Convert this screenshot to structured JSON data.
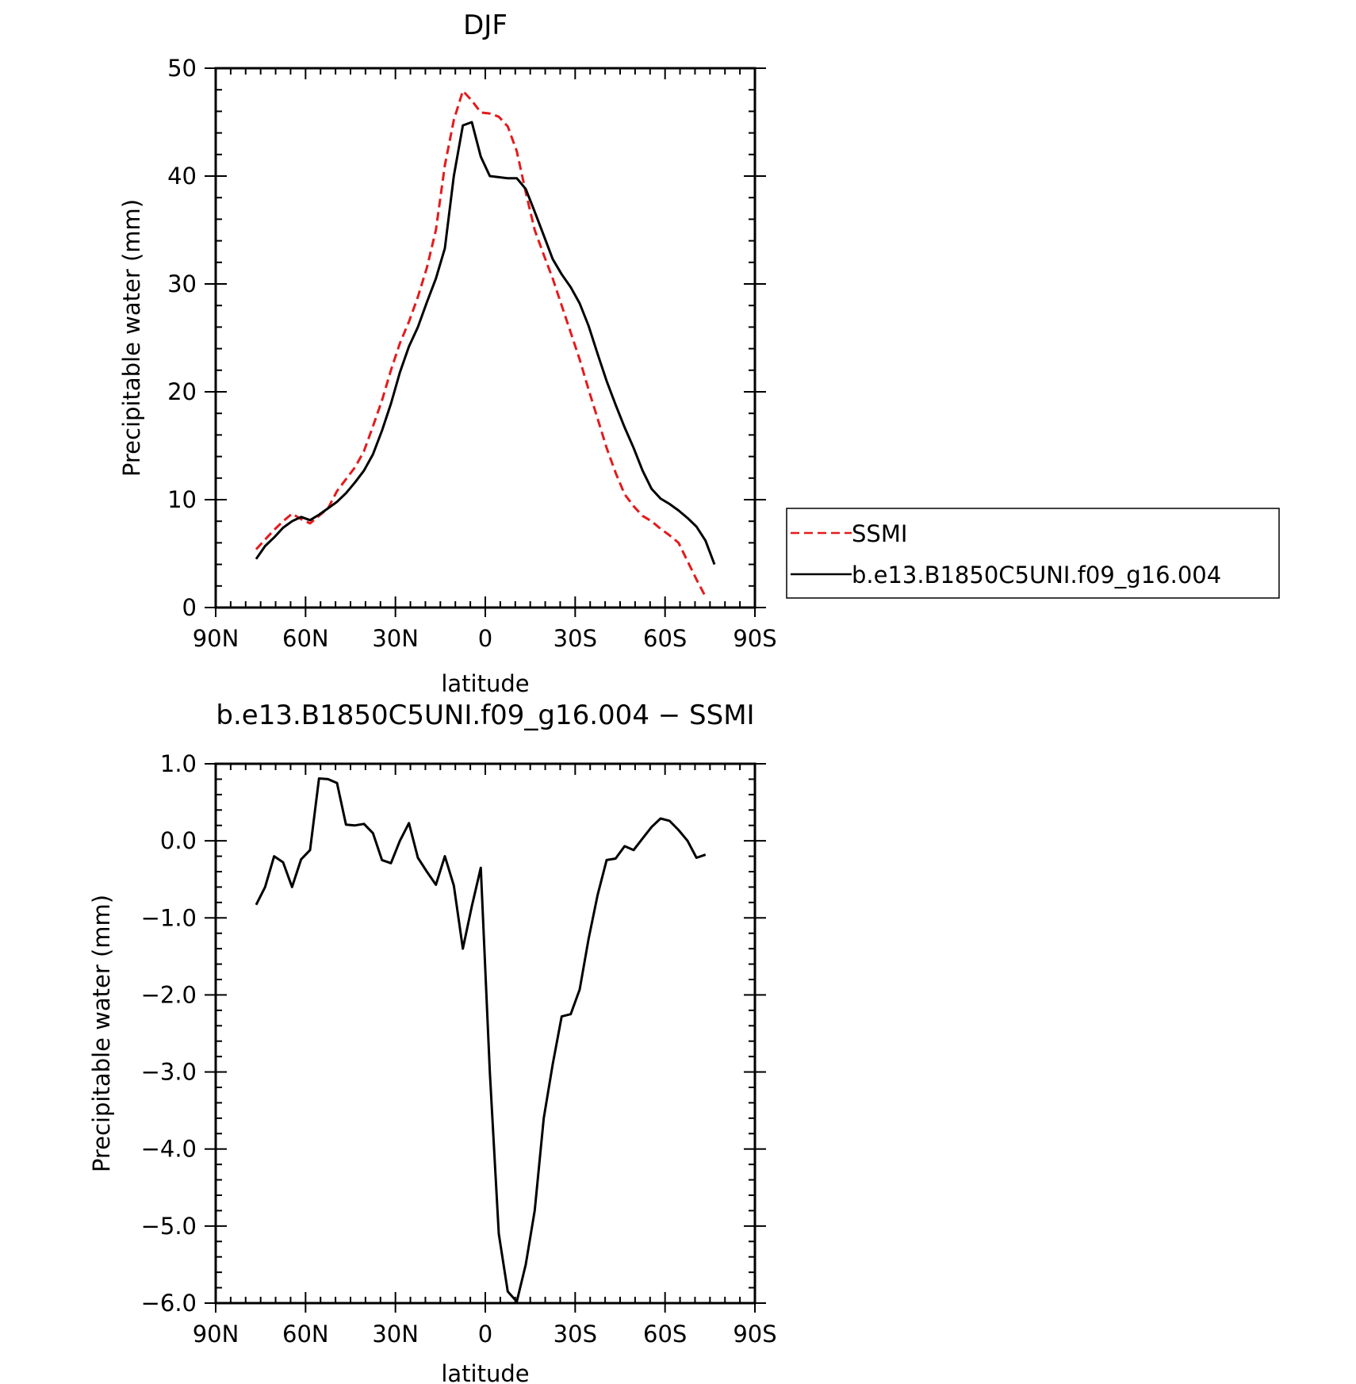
{
  "figure": {
    "legend": {
      "position": "right-of-top-panel",
      "entries": [
        {
          "label": "SSMI",
          "color": "#e41a1c",
          "style": "dashed"
        },
        {
          "label": "b.e13.B1850C5UNI.f09_g16.004",
          "color": "#000000",
          "style": "solid"
        }
      ]
    }
  },
  "chart_data": [
    {
      "type": "line",
      "title": "DJF",
      "xlabel": "latitude",
      "ylabel": "Precipitable water (mm)",
      "xlim": [
        90,
        -90
      ],
      "ylim": [
        0,
        50
      ],
      "xticks": [
        {
          "value": 90,
          "label": "90N"
        },
        {
          "value": 60,
          "label": "60N"
        },
        {
          "value": 30,
          "label": "30N"
        },
        {
          "value": 0,
          "label": "0"
        },
        {
          "value": -30,
          "label": "30S"
        },
        {
          "value": -60,
          "label": "60S"
        },
        {
          "value": -90,
          "label": "90S"
        }
      ],
      "yticks": [
        {
          "value": 0,
          "label": "0"
        },
        {
          "value": 10,
          "label": "10"
        },
        {
          "value": 20,
          "label": "20"
        },
        {
          "value": 30,
          "label": "30"
        },
        {
          "value": 40,
          "label": "40"
        },
        {
          "value": 50,
          "label": "50"
        }
      ],
      "series": [
        {
          "name": "SSMI",
          "color": "#e41a1c",
          "dashed": true,
          "x": [
            76.5,
            73.5,
            70.5,
            67.5,
            64.5,
            61.5,
            58.5,
            55.5,
            52.5,
            49.5,
            46.5,
            43.5,
            40.5,
            37.5,
            34.5,
            31.5,
            28.5,
            25.5,
            22.5,
            19.5,
            16.5,
            13.5,
            10.5,
            7.5,
            4.5,
            1.5,
            -1.5,
            -4.5,
            -7.5,
            -10.5,
            -13.5,
            -16.5,
            -19.5,
            -22.5,
            -25.5,
            -28.5,
            -31.5,
            -34.5,
            -37.5,
            -40.5,
            -43.5,
            -46.5,
            -49.5,
            -52.5,
            -55.5,
            -58.5,
            -61.5,
            -64.5,
            -67.5,
            -70.5,
            -73.5
          ],
          "y": [
            5.4,
            6.3,
            7.2,
            8.0,
            8.7,
            8.2,
            7.8,
            8.5,
            9.2,
            10.8,
            11.9,
            13.0,
            14.5,
            16.8,
            19.2,
            22.0,
            24.5,
            26.5,
            28.8,
            31.5,
            35.0,
            41.0,
            45.2,
            47.9,
            47.0,
            45.9,
            45.8,
            45.5,
            44.6,
            42.3,
            38.5,
            35.0,
            32.7,
            30.5,
            28.0,
            25.5,
            23.0,
            20.2,
            17.5,
            14.8,
            12.5,
            10.5,
            9.4,
            8.5,
            8.0,
            7.3,
            6.7,
            6.0,
            4.3,
            2.6,
            1.0
          ]
        },
        {
          "name": "b.e13.B1850C5UNI.f09_g16.004",
          "color": "#000000",
          "dashed": false,
          "x": [
            76.5,
            73.5,
            70.5,
            67.5,
            64.5,
            61.5,
            58.5,
            55.5,
            52.5,
            49.5,
            46.5,
            43.5,
            40.5,
            37.5,
            34.5,
            31.5,
            28.5,
            25.5,
            22.5,
            19.5,
            16.5,
            13.5,
            10.5,
            7.5,
            4.5,
            1.5,
            -1.5,
            -4.5,
            -7.5,
            -10.5,
            -13.5,
            -16.5,
            -19.5,
            -22.5,
            -25.5,
            -28.5,
            -31.5,
            -34.5,
            -37.5,
            -40.5,
            -43.5,
            -46.5,
            -49.5,
            -52.5,
            -55.5,
            -58.5,
            -61.5,
            -64.5,
            -67.5,
            -70.5,
            -73.5,
            -76.5
          ],
          "y": [
            4.5,
            5.7,
            6.5,
            7.4,
            8.0,
            8.4,
            8.1,
            8.6,
            9.2,
            9.8,
            10.6,
            11.6,
            12.7,
            14.2,
            16.4,
            18.9,
            21.8,
            24.2,
            26.0,
            28.3,
            30.5,
            33.3,
            40.0,
            44.7,
            45.0,
            41.8,
            40.0,
            39.9,
            39.8,
            39.8,
            38.8,
            36.7,
            34.5,
            32.3,
            30.9,
            29.7,
            28.2,
            26.1,
            23.5,
            21.0,
            18.8,
            16.7,
            14.8,
            12.7,
            11.0,
            10.1,
            9.6,
            9.0,
            8.3,
            7.5,
            6.2,
            4.0
          ]
        }
      ]
    },
    {
      "type": "line",
      "title": "b.e13.B1850C5UNI.f09_g16.004 − SSMI",
      "xlabel": "latitude",
      "ylabel": "Precipitable water (mm)",
      "xlim": [
        90,
        -90
      ],
      "ylim": [
        -6.0,
        1.0
      ],
      "xticks": [
        {
          "value": 90,
          "label": "90N"
        },
        {
          "value": 60,
          "label": "60N"
        },
        {
          "value": 30,
          "label": "30N"
        },
        {
          "value": 0,
          "label": "0"
        },
        {
          "value": -30,
          "label": "30S"
        },
        {
          "value": -60,
          "label": "60S"
        },
        {
          "value": -90,
          "label": "90S"
        }
      ],
      "yticks": [
        {
          "value": 1.0,
          "label": "1.0"
        },
        {
          "value": 0.0,
          "label": "0.0"
        },
        {
          "value": -1.0,
          "label": "−1.0"
        },
        {
          "value": -2.0,
          "label": "−2.0"
        },
        {
          "value": -3.0,
          "label": "−3.0"
        },
        {
          "value": -4.0,
          "label": "−4.0"
        },
        {
          "value": -5.0,
          "label": "−5.0"
        },
        {
          "value": -6.0,
          "label": "−6.0"
        }
      ],
      "series": [
        {
          "color": "#000000",
          "dashed": false,
          "x": [
            76.5,
            73.5,
            70.5,
            67.5,
            64.5,
            61.5,
            58.5,
            55.5,
            52.5,
            49.5,
            46.5,
            43.5,
            40.5,
            37.5,
            34.5,
            31.5,
            28.5,
            25.5,
            22.5,
            19.5,
            16.5,
            13.5,
            10.5,
            7.5,
            4.5,
            1.5,
            -1.5,
            -4.5,
            -7.5,
            -10.5,
            -13.5,
            -16.5,
            -19.5,
            -22.5,
            -25.5,
            -28.5,
            -31.5,
            -34.5,
            -37.5,
            -40.5,
            -43.5,
            -46.5,
            -49.5,
            -52.5,
            -55.5,
            -58.5,
            -61.5,
            -64.5,
            -67.5,
            -70.5,
            -73.5
          ],
          "y": [
            -0.83,
            -0.6,
            -0.2,
            -0.28,
            -0.6,
            -0.24,
            -0.12,
            0.81,
            0.8,
            0.75,
            0.21,
            0.2,
            0.22,
            0.1,
            -0.25,
            -0.29,
            0.0,
            0.23,
            -0.22,
            -0.4,
            -0.57,
            -0.2,
            -0.58,
            -1.4,
            -0.85,
            -0.35,
            -3.0,
            -5.1,
            -5.85,
            -5.98,
            -5.5,
            -4.8,
            -3.6,
            -2.9,
            -2.28,
            -2.25,
            -1.93,
            -1.27,
            -0.7,
            -0.25,
            -0.23,
            -0.07,
            -0.12,
            0.03,
            0.18,
            0.29,
            0.26,
            0.14,
            0.0,
            -0.22,
            -0.18
          ]
        }
      ]
    }
  ]
}
